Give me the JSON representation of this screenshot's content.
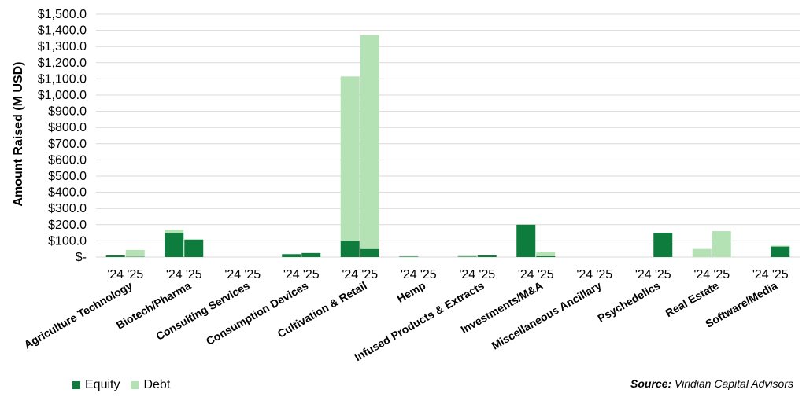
{
  "chart_data": {
    "type": "bar",
    "stacked": true,
    "ylabel": "Amount Raised (M USD)",
    "ylim": [
      0,
      1500
    ],
    "yticks": [
      "$-",
      "$100.0",
      "$200.0",
      "$300.0",
      "$400.0",
      "$500.0",
      "$600.0",
      "$700.0",
      "$800.0",
      "$900.0",
      "$1,000.0",
      "$1,100.0",
      "$1,200.0",
      "$1,300.0",
      "$1,400.0",
      "$1,500.0"
    ],
    "grid": true,
    "legend_position": "bottom-left",
    "sub_categories": [
      "'24",
      "'25"
    ],
    "categories": [
      "Agriculture Technology",
      "Biotech/Pharma",
      "Consulting Services",
      "Consumption Devices",
      "Cultivation & Retail",
      "Hemp",
      "Infused Products & Extracts",
      "Investments/M&A",
      "Miscellaneous Ancillary",
      "Psychedelics",
      "Real Estate",
      "Software/Media"
    ],
    "series": [
      {
        "name": "Equity",
        "color": "#0e7c3d",
        "values": [
          [
            10,
            2
          ],
          [
            148,
            108
          ],
          [
            0,
            0
          ],
          [
            18,
            25
          ],
          [
            100,
            50
          ],
          [
            3,
            0
          ],
          [
            3,
            10
          ],
          [
            200,
            5
          ],
          [
            0,
            0
          ],
          [
            0,
            150
          ],
          [
            0,
            0
          ],
          [
            0,
            65
          ]
        ]
      },
      {
        "name": "Debt",
        "color": "#b4e2b5",
        "values": [
          [
            0,
            42
          ],
          [
            22,
            0
          ],
          [
            0,
            0
          ],
          [
            0,
            0
          ],
          [
            1015,
            1320
          ],
          [
            3,
            0
          ],
          [
            5,
            0
          ],
          [
            0,
            28
          ],
          [
            0,
            0
          ],
          [
            0,
            0
          ],
          [
            50,
            160
          ],
          [
            0,
            5
          ]
        ]
      }
    ]
  },
  "source": {
    "label": "Source:",
    "text": "Viridian Capital Advisors"
  }
}
